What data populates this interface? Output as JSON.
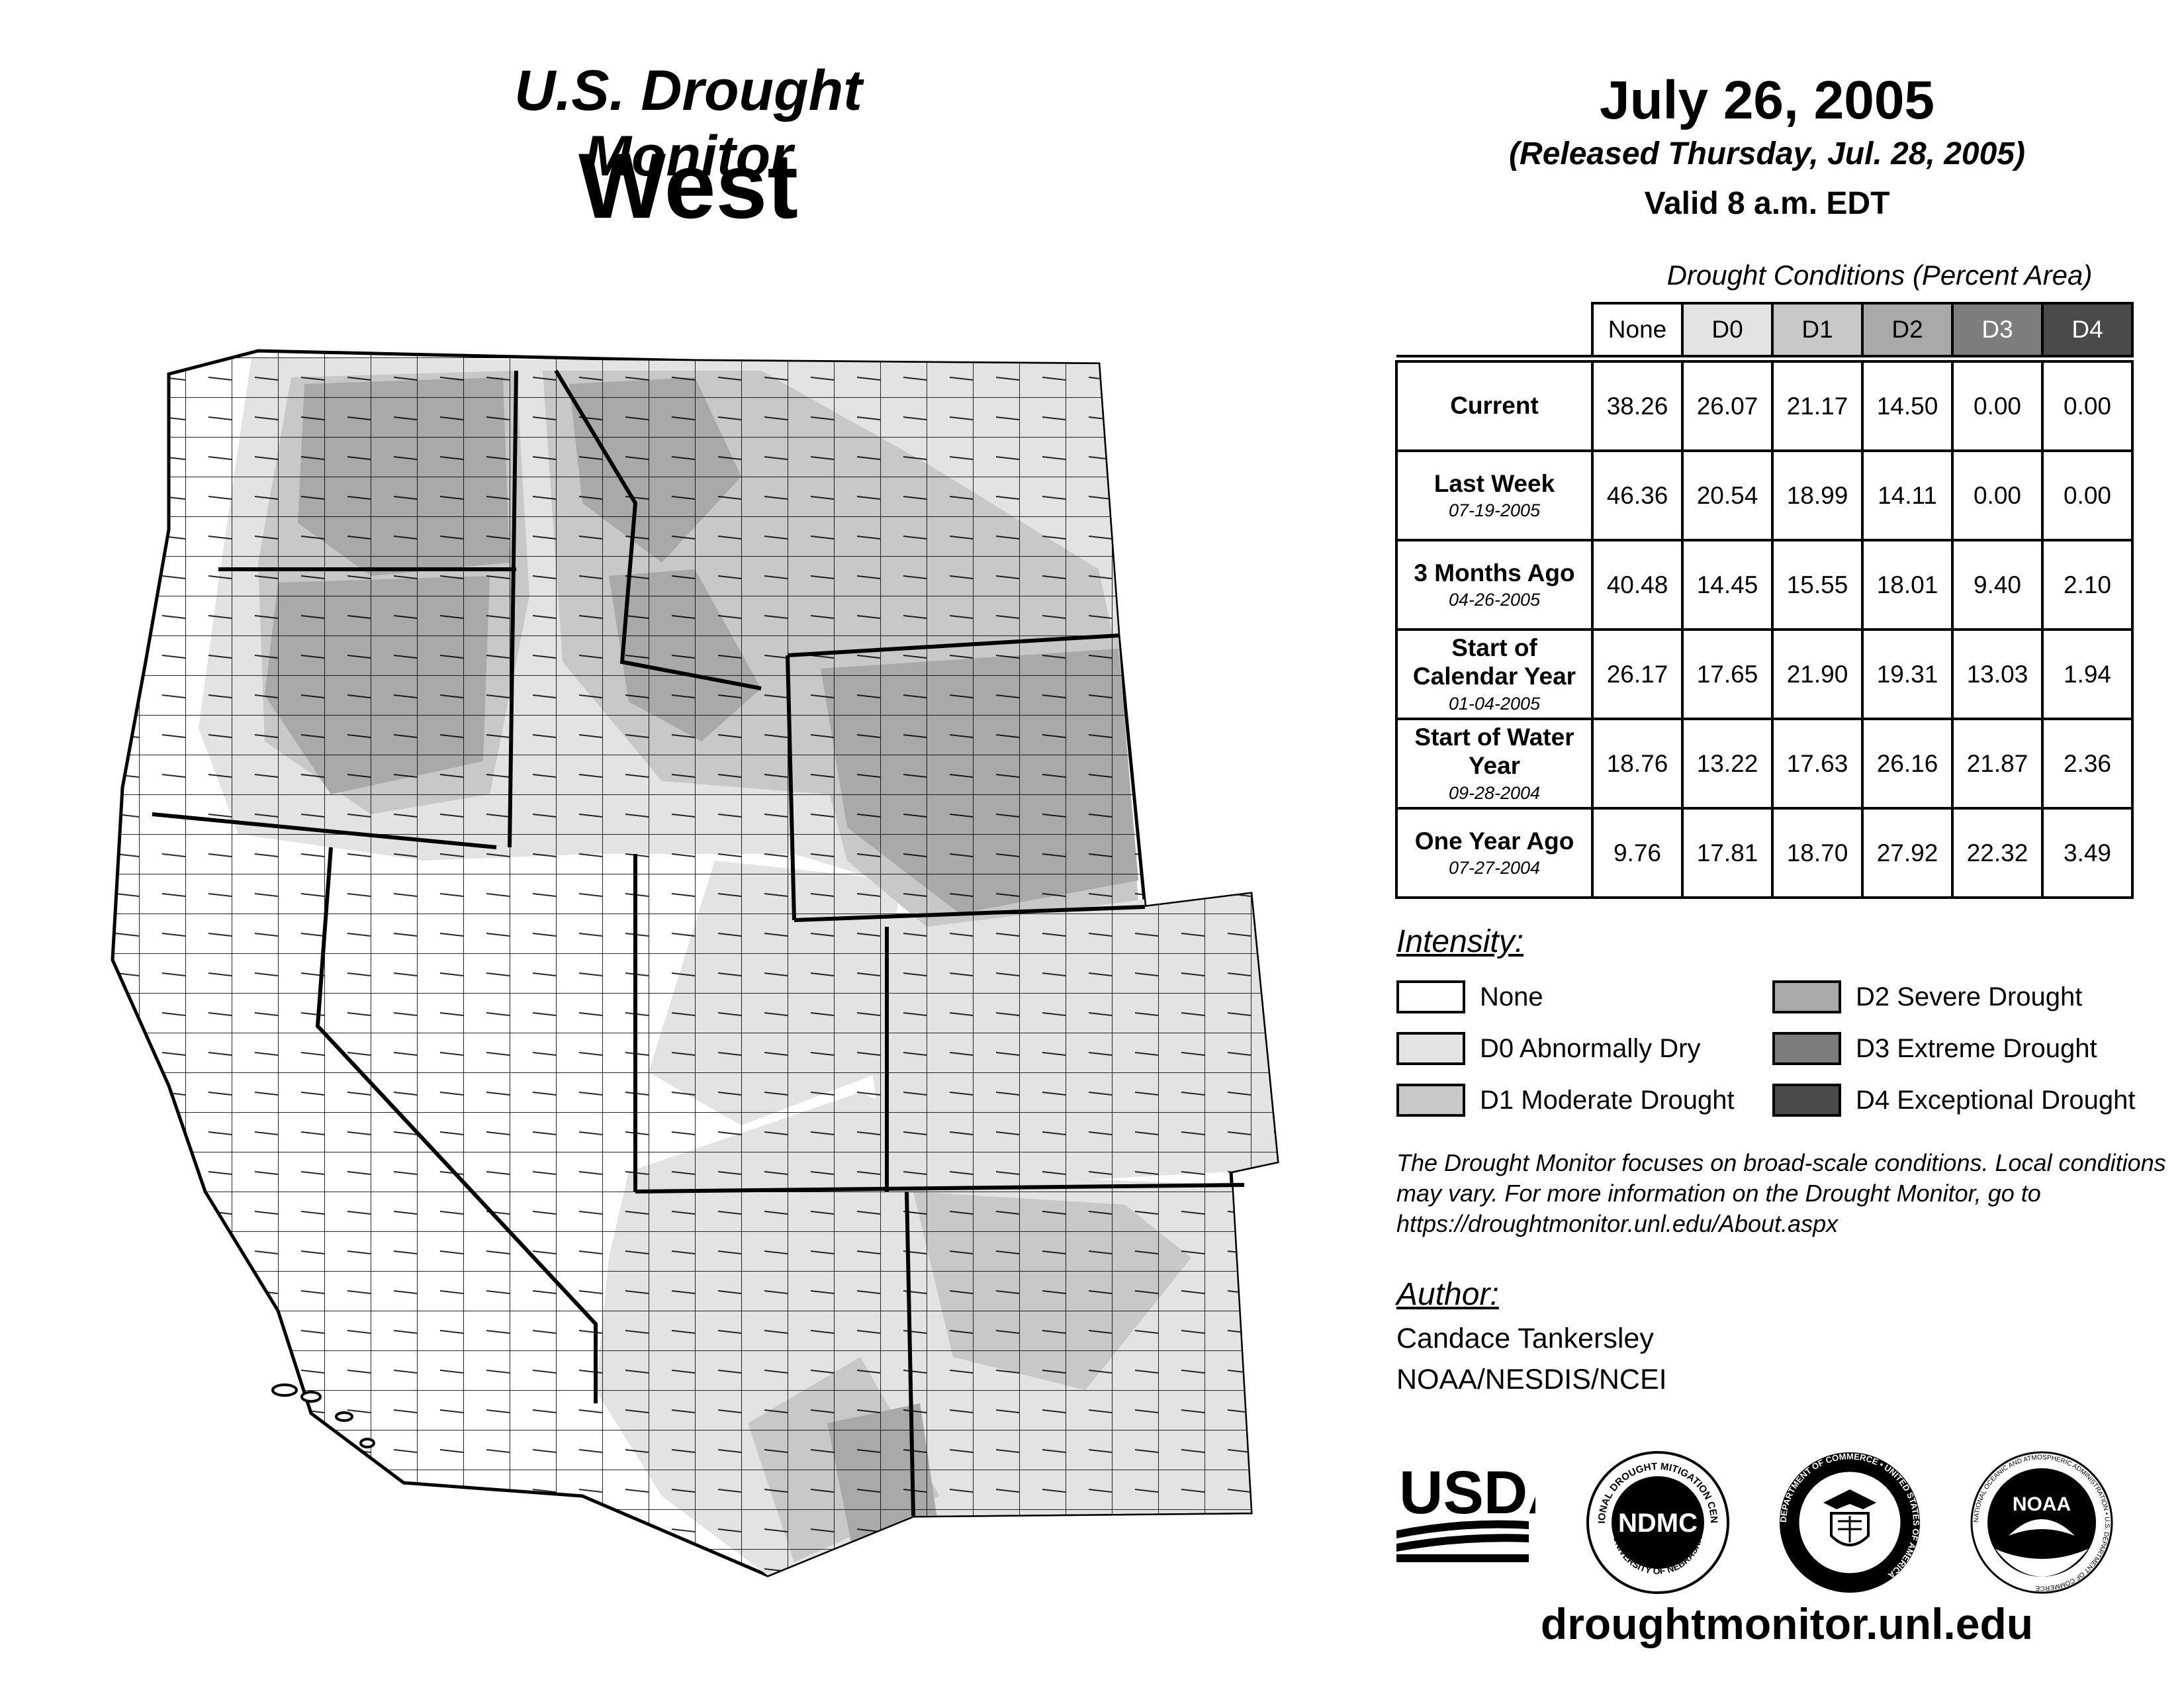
{
  "header": {
    "title": "U.S. Drought Monitor",
    "region": "West",
    "date": "July 26, 2005",
    "released": "(Released Thursday, Jul. 28, 2005)",
    "valid": "Valid 8 a.m. EDT"
  },
  "table": {
    "caption": "Drought Conditions (Percent Area)",
    "columns": [
      "None",
      "D0",
      "D1",
      "D2",
      "D3",
      "D4"
    ],
    "rows": [
      {
        "label": "Current",
        "sub": "",
        "values": [
          "38.26",
          "26.07",
          "21.17",
          "14.50",
          "0.00",
          "0.00"
        ]
      },
      {
        "label": "Last Week",
        "sub": "07-19-2005",
        "values": [
          "46.36",
          "20.54",
          "18.99",
          "14.11",
          "0.00",
          "0.00"
        ]
      },
      {
        "label": "3 Months Ago",
        "sub": "04-26-2005",
        "values": [
          "40.48",
          "14.45",
          "15.55",
          "18.01",
          "9.40",
          "2.10"
        ]
      },
      {
        "label": "Start of Calendar Year",
        "sub": "01-04-2005",
        "values": [
          "26.17",
          "17.65",
          "21.90",
          "19.31",
          "13.03",
          "1.94"
        ]
      },
      {
        "label": "Start of Water Year",
        "sub": "09-28-2004",
        "values": [
          "18.76",
          "13.22",
          "17.63",
          "26.16",
          "21.87",
          "2.36"
        ]
      },
      {
        "label": "One Year Ago",
        "sub": "07-27-2004",
        "values": [
          "9.76",
          "17.81",
          "18.70",
          "27.92",
          "22.32",
          "3.49"
        ]
      }
    ]
  },
  "legend": {
    "title": "Intensity:",
    "items": [
      {
        "label": "None",
        "color": "#ffffff"
      },
      {
        "label": "D0 Abnormally Dry",
        "color": "#e3e3e3"
      },
      {
        "label": "D1 Moderate Drought",
        "color": "#c8c8c8"
      },
      {
        "label": "D2 Severe Drought",
        "color": "#a9a9a9"
      },
      {
        "label": "D3 Extreme Drought",
        "color": "#7d7d7d"
      },
      {
        "label": "D4 Exceptional Drought",
        "color": "#4a4a4a"
      }
    ]
  },
  "note": "The Drought Monitor focuses on broad-scale conditions. Local conditions may vary. For more information on the Drought Monitor, go to https://droughtmonitor.unl.edu/About.aspx",
  "author": {
    "title": "Author:",
    "name": "Candace Tankersley",
    "org": "NOAA/NESDIS/NCEI"
  },
  "logos": {
    "usda": "USDA",
    "ndmc": "NDMC",
    "ndmc_ring_top": "NATIONAL DROUGHT MITIGATION CENTER",
    "ndmc_ring_bottom": "UNIVERSITY OF NEBRASKA",
    "doc_ring": "DEPARTMENT OF COMMERCE • UNITED STATES OF AMERICA",
    "noaa": "NOAA",
    "noaa_ring": "NATIONAL OCEANIC AND ATMOSPHERIC ADMINISTRATION • U.S. DEPARTMENT OF COMMERCE"
  },
  "website": "droughtmonitor.unl.edu"
}
